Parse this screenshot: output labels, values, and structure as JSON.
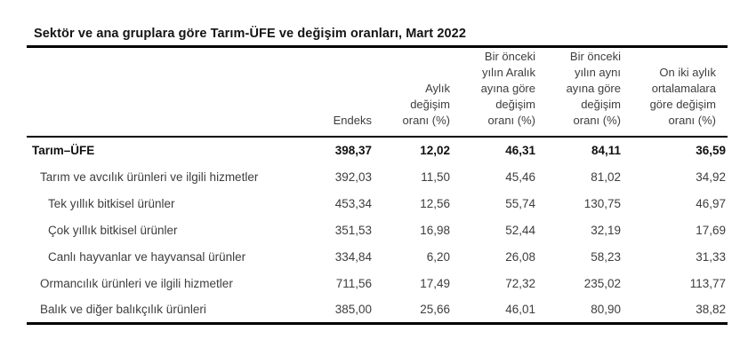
{
  "title": "Sektör ve ana gruplara göre Tarım-ÜFE ve değişim oranları, Mart 2022",
  "colors": {
    "background": "#ffffff",
    "text": "#3d3d3d",
    "emphasis_text": "#111111",
    "rule": "#000000"
  },
  "chart_data": {
    "type": "table",
    "title": "Sektör ve ana gruplara göre Tarım-ÜFE ve değişim oranları, Mart 2022",
    "columns": [
      "",
      "Endeks",
      "Aylık\ndeğişim\noranı (%)",
      "Bir önceki\nyılın Aralık\nayına göre\ndeğişim\noranı (%)",
      "Bir önceki\nyılın aynı\nayına göre\ndeğişim\noranı (%)",
      "On iki aylık\nortalamalara\ngöre değişim\noranı (%)"
    ],
    "rows": [
      {
        "label": "Tarım–ÜFE",
        "indent": 0,
        "bold": true,
        "values": [
          "398,37",
          "12,02",
          "46,31",
          "84,11",
          "36,59"
        ]
      },
      {
        "label": "Tarım ve avcılık ürünleri ve ilgili hizmetler",
        "indent": 1,
        "bold": false,
        "values": [
          "392,03",
          "11,50",
          "45,46",
          "81,02",
          "34,92"
        ]
      },
      {
        "label": "Tek yıllık bitkisel ürünler",
        "indent": 2,
        "bold": false,
        "values": [
          "453,34",
          "12,56",
          "55,74",
          "130,75",
          "46,97"
        ]
      },
      {
        "label": "Çok yıllık bitkisel ürünler",
        "indent": 2,
        "bold": false,
        "values": [
          "351,53",
          "16,98",
          "52,44",
          "32,19",
          "17,69"
        ]
      },
      {
        "label": "Canlı hayvanlar ve hayvansal ürünler",
        "indent": 2,
        "bold": false,
        "values": [
          "334,84",
          "6,20",
          "26,08",
          "58,23",
          "31,33"
        ]
      },
      {
        "label": "Ormancılık ürünleri ve ilgili hizmetler",
        "indent": 1,
        "bold": false,
        "values": [
          "711,56",
          "17,49",
          "72,32",
          "235,02",
          "113,77"
        ]
      },
      {
        "label": "Balık ve diğer balıkçılık ürünleri",
        "indent": 1,
        "bold": false,
        "values": [
          "385,00",
          "25,66",
          "46,01",
          "80,90",
          "38,82"
        ]
      }
    ]
  }
}
